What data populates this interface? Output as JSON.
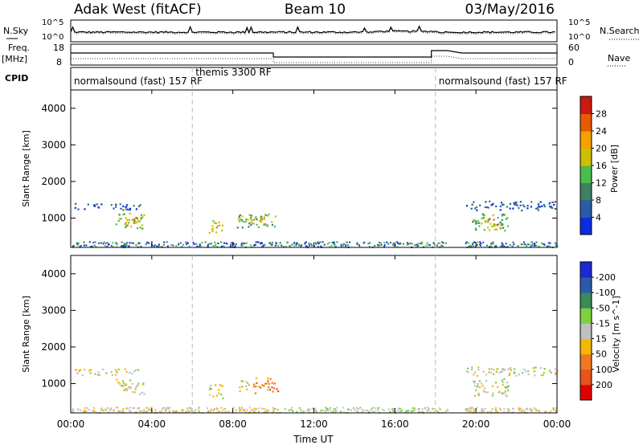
{
  "header": {
    "station": "Adak West (fitACF)",
    "beam": "Beam 10",
    "date": "03/May/2016"
  },
  "strip_labels": {
    "nsky": "N.Sky",
    "nsky_ticks": [
      "10^5",
      "10^0"
    ],
    "nsearch": "N.Search",
    "nsearch_ticks": [
      "10^5",
      "10^0"
    ],
    "freq": "Freq.",
    "freq_unit": "[MHz]",
    "freq_ticks": [
      "18",
      "8"
    ],
    "nave": "Nave",
    "nave_ticks": [
      "60",
      "0"
    ],
    "cpid": "CPID"
  },
  "cpid_segments": [
    {
      "label": "normalsound (fast) 157 RF",
      "start_h": 0,
      "end_h": 6
    },
    {
      "label": "themis 3300 RF",
      "start_h": 6,
      "end_h": 18
    },
    {
      "label": "normalsound (fast) 157 RF",
      "start_h": 18,
      "end_h": 24
    }
  ],
  "x_axis": {
    "label": "Time UT",
    "ticks": [
      "00:00",
      "04:00",
      "08:00",
      "12:00",
      "16:00",
      "20:00",
      "00:00"
    ],
    "range_h": [
      0,
      24
    ]
  },
  "colors": {
    "frame": "#000000",
    "dashed": "#bbbbbb",
    "ground_gray": "#c0c0c0"
  },
  "chart_data": [
    {
      "type": "heatmap",
      "name": "power",
      "ylabel": "Slant Range [km]",
      "yticks": [
        "1000",
        "2000",
        "3000",
        "4000"
      ],
      "ylim": [
        200,
        4500
      ],
      "colorbar": {
        "label": "Power [dB]",
        "ticks": [
          "4",
          "8",
          "12",
          "16",
          "20",
          "24",
          "28"
        ],
        "colors": [
          "#0a2de0",
          "#2a5aa8",
          "#3f7f62",
          "#4bbd4b",
          "#ccc000",
          "#f5a000",
          "#e85a00",
          "#cc1a10"
        ]
      },
      "patches": [
        {
          "t0": 0.1,
          "t1": 3.4,
          "r0": 1240,
          "r1": 1420,
          "level": 1
        },
        {
          "t0": 2.2,
          "t1": 3.6,
          "r0": 720,
          "r1": 1150,
          "level": 3
        },
        {
          "t0": 2.6,
          "t1": 3.3,
          "r0": 820,
          "r1": 1050,
          "level": 5
        },
        {
          "t0": 6.8,
          "t1": 7.5,
          "r0": 620,
          "r1": 1000,
          "level": 4
        },
        {
          "t0": 8.2,
          "t1": 10.2,
          "r0": 760,
          "r1": 1150,
          "level": 3
        },
        {
          "t0": 8.8,
          "t1": 9.6,
          "r0": 850,
          "r1": 1080,
          "level": 5
        },
        {
          "t0": 19.5,
          "t1": 24.0,
          "r0": 1230,
          "r1": 1480,
          "level": 1
        },
        {
          "t0": 19.8,
          "t1": 21.6,
          "r0": 680,
          "r1": 1150,
          "level": 3
        },
        {
          "t0": 20.4,
          "t1": 21.2,
          "r0": 760,
          "r1": 1000,
          "level": 5
        }
      ]
    },
    {
      "type": "heatmap",
      "name": "velocity",
      "ylabel": "Slant Range [km]",
      "yticks": [
        "1000",
        "2000",
        "3000",
        "4000"
      ],
      "ylim": [
        200,
        4500
      ],
      "colorbar": {
        "label": "Velocity [m s^-1]",
        "ticks": [
          "200",
          "100",
          "50",
          "15",
          "-15",
          "-50",
          "-100",
          "-200"
        ],
        "colors": [
          "#1a2ad0",
          "#2a5aa8",
          "#3a8a5a",
          "#7fd040",
          "#c0c0c0",
          "#f5b800",
          "#f07820",
          "#e8541a",
          "#e00000"
        ]
      },
      "patches": [
        {
          "t0": 0.1,
          "t1": 3.4,
          "r0": 1240,
          "r1": 1420,
          "level": 4
        },
        {
          "t0": 2.2,
          "t1": 3.6,
          "r0": 720,
          "r1": 1150,
          "level": 4
        },
        {
          "t0": 6.8,
          "t1": 7.5,
          "r0": 620,
          "r1": 1000,
          "level": 4
        },
        {
          "t0": 8.3,
          "t1": 8.9,
          "r0": 780,
          "r1": 1100,
          "level": 4
        },
        {
          "t0": 9.0,
          "t1": 10.2,
          "r0": 750,
          "r1": 1180,
          "level": 6
        },
        {
          "t0": 19.5,
          "t1": 24.0,
          "r0": 1230,
          "r1": 1480,
          "level": 4
        },
        {
          "t0": 19.8,
          "t1": 21.6,
          "r0": 680,
          "r1": 1150,
          "level": 4
        }
      ]
    }
  ]
}
